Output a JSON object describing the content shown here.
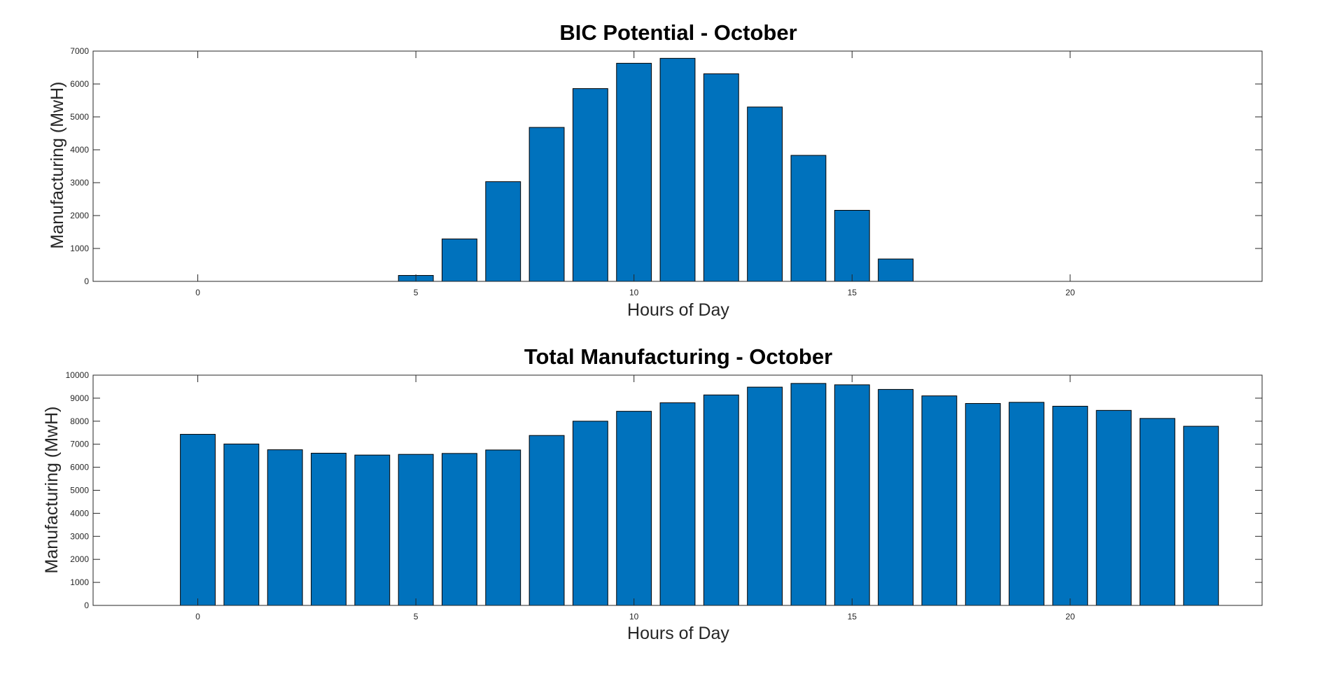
{
  "chart_data": [
    {
      "type": "bar",
      "title": "BIC Potential - October",
      "xlabel": "Hours of Day",
      "ylabel": "Manufacturing (MwH)",
      "xlim": [
        -2.4,
        24.4
      ],
      "ylim": [
        0,
        7000
      ],
      "xticks": [
        0,
        5,
        10,
        15,
        20
      ],
      "yticks": [
        0,
        1000,
        2000,
        3000,
        4000,
        5000,
        6000,
        7000
      ],
      "x": [
        0,
        1,
        2,
        3,
        4,
        5,
        6,
        7,
        8,
        9,
        10,
        11,
        12,
        13,
        14,
        15,
        16,
        17,
        18,
        19,
        20,
        21,
        22,
        23
      ],
      "values": [
        0,
        0,
        0,
        0,
        0,
        180,
        1290,
        3030,
        4680,
        5860,
        6630,
        6780,
        6310,
        5300,
        3830,
        2160,
        680,
        0,
        0,
        0,
        0,
        0,
        0,
        0
      ],
      "bar_color": "#0072BD"
    },
    {
      "type": "bar",
      "title": "Total Manufacturing - October",
      "xlabel": "Hours of Day",
      "ylabel": "Manufacturing (MwH)",
      "xlim": [
        -2.4,
        24.4
      ],
      "ylim": [
        0,
        10000
      ],
      "xticks": [
        0,
        5,
        10,
        15,
        20
      ],
      "yticks": [
        0,
        1000,
        2000,
        3000,
        4000,
        5000,
        6000,
        7000,
        8000,
        9000,
        10000
      ],
      "x": [
        0,
        1,
        2,
        3,
        4,
        5,
        6,
        7,
        8,
        9,
        10,
        11,
        12,
        13,
        14,
        15,
        16,
        17,
        18,
        19,
        20,
        21,
        22,
        23
      ],
      "values": [
        7430,
        7010,
        6760,
        6610,
        6530,
        6560,
        6600,
        6750,
        7380,
        8000,
        8430,
        8800,
        9140,
        9480,
        9640,
        9580,
        9380,
        9100,
        8770,
        8820,
        8650,
        8470,
        8120,
        7780
      ],
      "bar_color": "#0072BD"
    }
  ]
}
